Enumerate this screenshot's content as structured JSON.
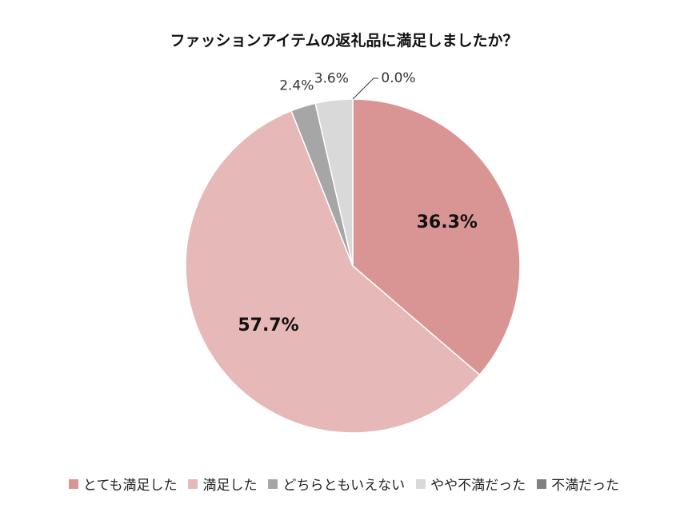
{
  "chart_data": {
    "type": "pie",
    "title": "ファッションアイテムの返礼品に満足しましたか？",
    "categories": [
      "とても満足した",
      "満足した",
      "どちらともいえない",
      "やや不満だった",
      "不満だった"
    ],
    "values": [
      36.3,
      57.7,
      2.4,
      3.6,
      0.0
    ],
    "value_labels": [
      "36.3%",
      "57.7%",
      "2.4%",
      "3.6%",
      "0.0%"
    ],
    "colors": [
      "#d99594",
      "#e6b8b7",
      "#a6a6a6",
      "#d9d9d9",
      "#808080"
    ],
    "legend_position": "bottom",
    "start_angle": "12 o'clock",
    "direction": "clockwise"
  }
}
